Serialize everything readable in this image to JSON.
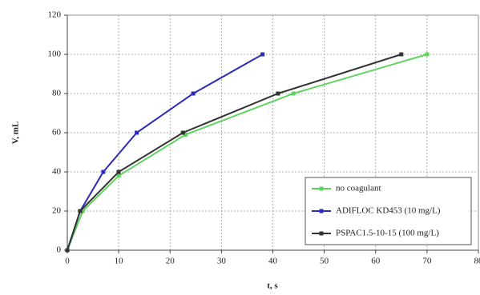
{
  "chart_data": {
    "type": "line",
    "xlabel": "t, s",
    "ylabel": "V, mL",
    "xlim": [
      0,
      80
    ],
    "xticks": [
      0,
      10,
      20,
      30,
      40,
      50,
      60,
      70,
      80
    ],
    "ylim": [
      0,
      120
    ],
    "yticks": [
      0,
      20,
      40,
      60,
      80,
      100,
      120
    ],
    "grid": true,
    "legend": "lower right",
    "series": [
      {
        "name": "no coagulant",
        "color": "#5fd35f",
        "x": [
          0,
          3,
          10,
          23,
          44,
          70
        ],
        "values": [
          0,
          20,
          38,
          59,
          80,
          100
        ]
      },
      {
        "name": "ADIFLOC KD453 (10 mg/L)",
        "color": "#2c2cb8",
        "x": [
          0,
          2.5,
          7,
          13.5,
          24.5,
          38
        ],
        "values": [
          0,
          20,
          40,
          60,
          80,
          100
        ]
      },
      {
        "name": "PSPAC1.5-10-15 (100 mg/L)",
        "color": "#333333",
        "x": [
          0,
          2.5,
          10,
          22.5,
          41,
          65
        ],
        "values": [
          0,
          20,
          40,
          60,
          80,
          100
        ]
      }
    ]
  }
}
